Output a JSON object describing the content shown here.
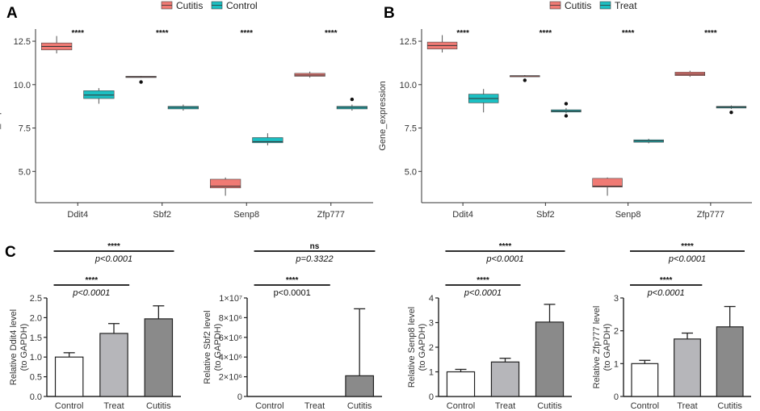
{
  "colors": {
    "cutitis": "#f07a74",
    "control": "#1cbfc2",
    "bar_white": "#ffffff",
    "bar_light": "#b6b6ba",
    "bar_dark": "#8a8a8a"
  },
  "panels": {
    "a": "A",
    "b": "B",
    "c": "C"
  },
  "chart_data": [
    {
      "id": "A",
      "type": "box",
      "xlabel": "",
      "ylabel": "Gene_expression",
      "ylim": [
        3.2,
        13.2
      ],
      "yticks": [
        "5.0",
        "7.5",
        "10.0",
        "12.5"
      ],
      "ytick_values": [
        5.0,
        7.5,
        10.0,
        12.5
      ],
      "categories": [
        "Ddit4",
        "Sbf2",
        "Senp8",
        "Zfp777"
      ],
      "legend": [
        "Cutitis",
        "Control"
      ],
      "significance": [
        "****",
        "****",
        "****",
        "****"
      ],
      "series": [
        {
          "name": "Cutitis",
          "boxes": [
            {
              "min": 11.8,
              "q1": 12.0,
              "median": 12.2,
              "q3": 12.4,
              "max": 12.8,
              "outliers": []
            },
            {
              "min": 10.4,
              "q1": 10.42,
              "median": 10.45,
              "q3": 10.48,
              "max": 10.5,
              "outliers": [
                10.15
              ]
            },
            {
              "min": 3.6,
              "q1": 4.05,
              "median": 4.15,
              "q3": 4.55,
              "max": 4.65,
              "outliers": []
            },
            {
              "min": 10.4,
              "q1": 10.48,
              "median": 10.55,
              "q3": 10.65,
              "max": 10.75,
              "outliers": []
            }
          ]
        },
        {
          "name": "Control",
          "boxes": [
            {
              "min": 8.9,
              "q1": 9.2,
              "median": 9.4,
              "q3": 9.65,
              "max": 9.8,
              "outliers": []
            },
            {
              "min": 8.5,
              "q1": 8.6,
              "median": 8.68,
              "q3": 8.75,
              "max": 8.85,
              "outliers": []
            },
            {
              "min": 6.5,
              "q1": 6.65,
              "median": 6.72,
              "q3": 6.95,
              "max": 7.2,
              "outliers": []
            },
            {
              "min": 8.5,
              "q1": 8.6,
              "median": 8.68,
              "q3": 8.75,
              "max": 8.85,
              "outliers": [
                9.15
              ]
            }
          ]
        }
      ]
    },
    {
      "id": "B",
      "type": "box",
      "xlabel": "",
      "ylabel": "Gene_expression",
      "ylim": [
        3.2,
        13.2
      ],
      "yticks": [
        "5.0",
        "7.5",
        "10.0",
        "12.5"
      ],
      "ytick_values": [
        5.0,
        7.5,
        10.0,
        12.5
      ],
      "categories": [
        "Ddit4",
        "Sbf2",
        "Senp8",
        "Zfp777"
      ],
      "legend": [
        "Cutitis",
        "Treat"
      ],
      "significance": [
        "****",
        "****",
        "****",
        "****"
      ],
      "series": [
        {
          "name": "Cutitis",
          "boxes": [
            {
              "min": 11.85,
              "q1": 12.05,
              "median": 12.25,
              "q3": 12.45,
              "max": 12.85,
              "outliers": []
            },
            {
              "min": 10.45,
              "q1": 10.47,
              "median": 10.5,
              "q3": 10.52,
              "max": 10.55,
              "outliers": [
                10.25
              ]
            },
            {
              "min": 3.6,
              "q1": 4.1,
              "median": 4.15,
              "q3": 4.6,
              "max": 4.65,
              "outliers": []
            },
            {
              "min": 10.45,
              "q1": 10.52,
              "median": 10.6,
              "q3": 10.72,
              "max": 10.8,
              "outliers": []
            }
          ]
        },
        {
          "name": "Treat",
          "boxes": [
            {
              "min": 8.4,
              "q1": 8.95,
              "median": 9.2,
              "q3": 9.45,
              "max": 9.75,
              "outliers": []
            },
            {
              "min": 8.35,
              "q1": 8.42,
              "median": 8.48,
              "q3": 8.55,
              "max": 8.65,
              "outliers": [
                8.9,
                8.2
              ]
            },
            {
              "min": 6.62,
              "q1": 6.68,
              "median": 6.75,
              "q3": 6.82,
              "max": 6.88,
              "outliers": []
            },
            {
              "min": 8.6,
              "q1": 8.65,
              "median": 8.7,
              "q3": 8.75,
              "max": 8.8,
              "outliers": [
                8.4
              ]
            }
          ]
        }
      ]
    },
    {
      "id": "C1",
      "type": "bar",
      "ylabel": [
        "Relative Ddit4 level",
        "(to GAPDH)"
      ],
      "categories": [
        "Control",
        "Treat",
        "Cutitis"
      ],
      "values": [
        1.0,
        1.6,
        1.97
      ],
      "errors": [
        0.11,
        0.25,
        0.33
      ],
      "ylim": [
        0,
        2.5
      ],
      "yticks": [
        "0.0",
        "0.5",
        "1.0",
        "1.5",
        "2.0",
        "2.5"
      ],
      "ytick_values": [
        0,
        0.5,
        1.0,
        1.5,
        2.0,
        2.5
      ],
      "comparisons": [
        {
          "from": 0,
          "to": 1,
          "stars": "****",
          "p": "p<0.0001",
          "italic": true,
          "level": 0
        },
        {
          "from": 0,
          "to": 2,
          "stars": "****",
          "p": "p<0.0001",
          "italic": true,
          "level": 1
        }
      ]
    },
    {
      "id": "C2",
      "type": "bar",
      "ylabel": [
        "Relative Sbf2 level",
        "(to GAPDH)"
      ],
      "categories": [
        "Control",
        "Treat",
        "Cutitis"
      ],
      "values": [
        0,
        0,
        2100000
      ],
      "errors": [
        0,
        0,
        6800000
      ],
      "ylim": [
        0,
        10000000
      ],
      "yticks": [
        "0",
        "2×10⁶",
        "4×10⁶",
        "6×10⁶",
        "8×10⁶",
        "1×10⁷"
      ],
      "ytick_values": [
        0,
        2000000,
        4000000,
        6000000,
        8000000,
        10000000
      ],
      "comparisons": [
        {
          "from": 0,
          "to": 1,
          "stars": "****",
          "p": "p<0.0001",
          "italic": false,
          "level": 0
        },
        {
          "from": 0,
          "to": 2,
          "stars": "ns",
          "p": "p=0.3322",
          "italic": true,
          "level": 1
        }
      ]
    },
    {
      "id": "C3",
      "type": "bar",
      "ylabel": [
        "Relative Senp8 level",
        "(to GAPDH)"
      ],
      "categories": [
        "Control",
        "Treat",
        "Cutitis"
      ],
      "values": [
        1.0,
        1.4,
        3.02
      ],
      "errors": [
        0.1,
        0.15,
        0.72
      ],
      "ylim": [
        0,
        4
      ],
      "yticks": [
        "0",
        "1",
        "2",
        "3",
        "4"
      ],
      "ytick_values": [
        0,
        1,
        2,
        3,
        4
      ],
      "comparisons": [
        {
          "from": 0,
          "to": 1,
          "stars": "****",
          "p": "p<0.0001",
          "italic": true,
          "level": 0
        },
        {
          "from": 0,
          "to": 2,
          "stars": "****",
          "p": "p<0.0001",
          "italic": true,
          "level": 1
        }
      ]
    },
    {
      "id": "C4",
      "type": "bar",
      "ylabel": [
        "Relative Zfp777 level",
        "(to GAPDH)"
      ],
      "categories": [
        "Control",
        "Treat",
        "Cutitis"
      ],
      "values": [
        1.0,
        1.75,
        2.12
      ],
      "errors": [
        0.1,
        0.18,
        0.62
      ],
      "ylim": [
        0,
        3
      ],
      "yticks": [
        "0",
        "1",
        "2",
        "3"
      ],
      "ytick_values": [
        0,
        1,
        2,
        3
      ],
      "comparisons": [
        {
          "from": 0,
          "to": 1,
          "stars": "****",
          "p": "p<0.0001",
          "italic": true,
          "level": 0
        },
        {
          "from": 0,
          "to": 2,
          "stars": "****",
          "p": "p<0.0001",
          "italic": true,
          "level": 1
        }
      ]
    }
  ]
}
